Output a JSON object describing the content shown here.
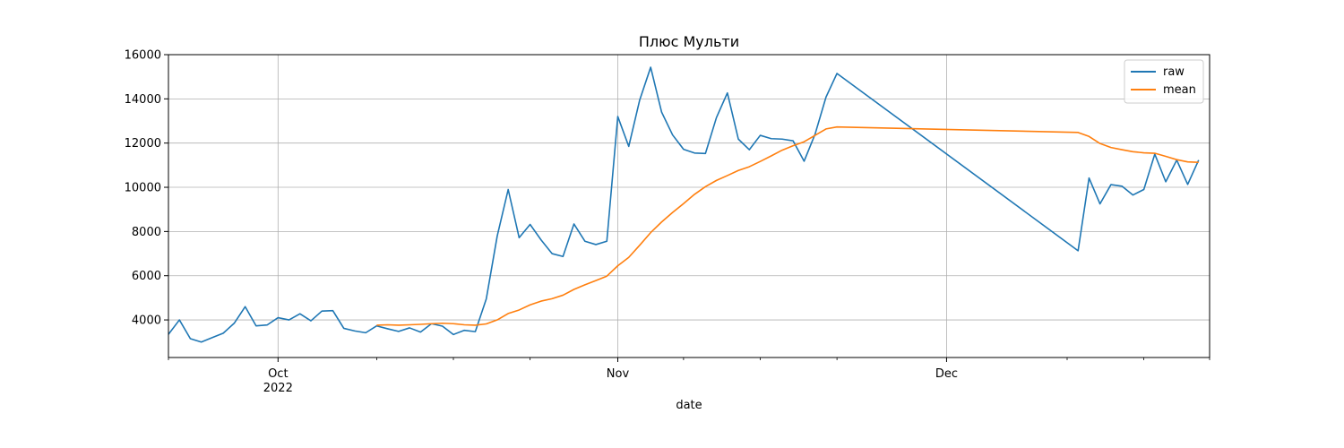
{
  "chart_data": {
    "type": "line",
    "title": "Плюс Мульти",
    "xlabel": "date",
    "ylabel": "",
    "xlim": [
      "2022-09-21",
      "2022-12-25"
    ],
    "ylim": [
      2300,
      16000
    ],
    "grid": true,
    "legend_position": "top-right",
    "x_ticks": [
      {
        "date": "2022-10-01",
        "label": "Oct",
        "sublabel": "2022"
      },
      {
        "date": "2022-11-01",
        "label": "Nov",
        "sublabel": ""
      },
      {
        "date": "2022-12-01",
        "label": "Dec",
        "sublabel": ""
      }
    ],
    "x_minor_ticks": [
      "2022-09-21",
      "2022-10-10",
      "2022-10-17",
      "2022-10-24",
      "2022-11-07",
      "2022-11-14",
      "2022-11-21",
      "2022-12-12",
      "2022-12-19",
      "2022-12-25"
    ],
    "y_ticks": [
      4000,
      6000,
      8000,
      10000,
      12000,
      14000,
      16000
    ],
    "y_tick_labels": [
      "4000",
      "6000",
      "8000",
      "10000",
      "12000",
      "14000",
      "16000"
    ],
    "series": [
      {
        "name": "raw",
        "color": "#1f77b4",
        "points": [
          [
            "2022-09-21",
            3350
          ],
          [
            "2022-09-22",
            4000
          ],
          [
            "2022-09-23",
            3150
          ],
          [
            "2022-09-24",
            3000
          ],
          [
            "2022-09-25",
            3200
          ],
          [
            "2022-09-26",
            3400
          ],
          [
            "2022-09-27",
            3850
          ],
          [
            "2022-09-28",
            4600
          ],
          [
            "2022-09-29",
            3730
          ],
          [
            "2022-09-30",
            3770
          ],
          [
            "2022-10-01",
            4100
          ],
          [
            "2022-10-02",
            4000
          ],
          [
            "2022-10-03",
            4280
          ],
          [
            "2022-10-04",
            3960
          ],
          [
            "2022-10-05",
            4400
          ],
          [
            "2022-10-06",
            4420
          ],
          [
            "2022-10-07",
            3620
          ],
          [
            "2022-10-08",
            3500
          ],
          [
            "2022-10-09",
            3420
          ],
          [
            "2022-10-10",
            3730
          ],
          [
            "2022-10-11",
            3600
          ],
          [
            "2022-10-12",
            3480
          ],
          [
            "2022-10-13",
            3640
          ],
          [
            "2022-10-14",
            3450
          ],
          [
            "2022-10-15",
            3830
          ],
          [
            "2022-10-16",
            3720
          ],
          [
            "2022-10-17",
            3340
          ],
          [
            "2022-10-18",
            3530
          ],
          [
            "2022-10-19",
            3470
          ],
          [
            "2022-10-20",
            4950
          ],
          [
            "2022-10-21",
            7800
          ],
          [
            "2022-10-22",
            9900
          ],
          [
            "2022-10-23",
            7720
          ],
          [
            "2022-10-24",
            8320
          ],
          [
            "2022-10-25",
            7620
          ],
          [
            "2022-10-26",
            7000
          ],
          [
            "2022-10-27",
            6870
          ],
          [
            "2022-10-28",
            8340
          ],
          [
            "2022-10-29",
            7560
          ],
          [
            "2022-10-30",
            7410
          ],
          [
            "2022-10-31",
            7560
          ],
          [
            "2022-11-01",
            13200
          ],
          [
            "2022-11-02",
            11850
          ],
          [
            "2022-11-03",
            13950
          ],
          [
            "2022-11-04",
            15430
          ],
          [
            "2022-11-05",
            13400
          ],
          [
            "2022-11-06",
            12370
          ],
          [
            "2022-11-07",
            11720
          ],
          [
            "2022-11-08",
            11550
          ],
          [
            "2022-11-09",
            11530
          ],
          [
            "2022-11-10",
            13150
          ],
          [
            "2022-11-11",
            14270
          ],
          [
            "2022-11-12",
            12180
          ],
          [
            "2022-11-13",
            11700
          ],
          [
            "2022-11-14",
            12350
          ],
          [
            "2022-11-15",
            12200
          ],
          [
            "2022-11-16",
            12180
          ],
          [
            "2022-11-17",
            12100
          ],
          [
            "2022-11-18",
            11180
          ],
          [
            "2022-11-19",
            12400
          ],
          [
            "2022-11-20",
            14080
          ],
          [
            "2022-11-21",
            15150
          ],
          [
            "2022-12-13",
            7130
          ],
          [
            "2022-12-14",
            10420
          ],
          [
            "2022-12-15",
            9250
          ],
          [
            "2022-12-16",
            10120
          ],
          [
            "2022-12-17",
            10050
          ],
          [
            "2022-12-18",
            9650
          ],
          [
            "2022-12-19",
            9900
          ],
          [
            "2022-12-20",
            11500
          ],
          [
            "2022-12-21",
            10250
          ],
          [
            "2022-12-22",
            11230
          ],
          [
            "2022-12-23",
            10130
          ],
          [
            "2022-12-24",
            11230
          ]
        ]
      },
      {
        "name": "mean",
        "color": "#ff7f0e",
        "points": [
          [
            "2022-10-10",
            3760
          ],
          [
            "2022-10-11",
            3780
          ],
          [
            "2022-10-12",
            3760
          ],
          [
            "2022-10-13",
            3780
          ],
          [
            "2022-10-14",
            3800
          ],
          [
            "2022-10-15",
            3830
          ],
          [
            "2022-10-16",
            3850
          ],
          [
            "2022-10-17",
            3830
          ],
          [
            "2022-10-18",
            3780
          ],
          [
            "2022-10-19",
            3760
          ],
          [
            "2022-10-20",
            3820
          ],
          [
            "2022-10-21",
            4000
          ],
          [
            "2022-10-22",
            4290
          ],
          [
            "2022-10-23",
            4450
          ],
          [
            "2022-10-24",
            4680
          ],
          [
            "2022-10-25",
            4850
          ],
          [
            "2022-10-26",
            4960
          ],
          [
            "2022-10-27",
            5120
          ],
          [
            "2022-10-28",
            5380
          ],
          [
            "2022-10-29",
            5590
          ],
          [
            "2022-10-30",
            5780
          ],
          [
            "2022-10-31",
            5980
          ],
          [
            "2022-11-01",
            6450
          ],
          [
            "2022-11-02",
            6830
          ],
          [
            "2022-11-03",
            7380
          ],
          [
            "2022-11-04",
            7950
          ],
          [
            "2022-11-05",
            8430
          ],
          [
            "2022-11-06",
            8860
          ],
          [
            "2022-11-07",
            9260
          ],
          [
            "2022-11-08",
            9680
          ],
          [
            "2022-11-09",
            10030
          ],
          [
            "2022-11-10",
            10310
          ],
          [
            "2022-11-11",
            10530
          ],
          [
            "2022-11-12",
            10760
          ],
          [
            "2022-11-13",
            10930
          ],
          [
            "2022-11-14",
            11170
          ],
          [
            "2022-11-15",
            11420
          ],
          [
            "2022-11-16",
            11680
          ],
          [
            "2022-11-17",
            11880
          ],
          [
            "2022-11-18",
            12060
          ],
          [
            "2022-11-19",
            12350
          ],
          [
            "2022-11-20",
            12640
          ],
          [
            "2022-11-21",
            12730
          ],
          [
            "2022-12-13",
            12480
          ],
          [
            "2022-12-14",
            12300
          ],
          [
            "2022-12-15",
            11980
          ],
          [
            "2022-12-16",
            11800
          ],
          [
            "2022-12-17",
            11700
          ],
          [
            "2022-12-18",
            11610
          ],
          [
            "2022-12-19",
            11560
          ],
          [
            "2022-12-20",
            11540
          ],
          [
            "2022-12-21",
            11400
          ],
          [
            "2022-12-22",
            11250
          ],
          [
            "2022-12-23",
            11150
          ],
          [
            "2022-12-24",
            11130
          ]
        ]
      }
    ]
  }
}
